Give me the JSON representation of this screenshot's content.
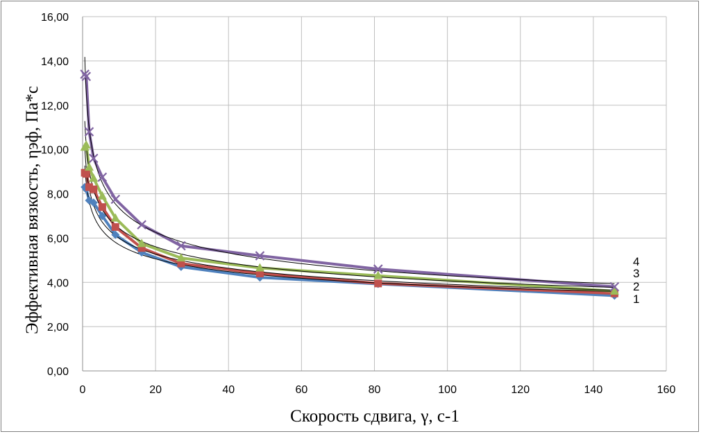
{
  "chart_data": {
    "type": "scatter",
    "title": "",
    "xlabel": "Скорость сдвига, γ, с-1",
    "ylabel": "Эффективная вязкость, ηэф, Па*с",
    "xlim": [
      0,
      160
    ],
    "ylim": [
      0,
      16
    ],
    "x_ticks": [
      "0",
      "20",
      "40",
      "60",
      "80",
      "100",
      "120",
      "140",
      "160"
    ],
    "y_ticks": [
      "0,00",
      "2,00",
      "4,00",
      "6,00",
      "8,00",
      "10,00",
      "12,00",
      "14,00",
      "16,00"
    ],
    "grid": true,
    "legend": "none",
    "curve_labels": [
      "1",
      "2",
      "3",
      "4"
    ],
    "series": [
      {
        "name": "1",
        "marker": "diamond",
        "color": "#4f81bd",
        "x": [
          0.6,
          1.0,
          1.8,
          3.0,
          5.4,
          9.0,
          16.2,
          27.0,
          48.6,
          81.0,
          145.8
        ],
        "y": [
          8.3,
          8.2,
          7.7,
          7.6,
          7.0,
          6.15,
          5.35,
          4.7,
          4.22,
          3.93,
          3.4
        ]
      },
      {
        "name": "2",
        "marker": "square",
        "color": "#c0504d",
        "x": [
          0.6,
          1.0,
          1.8,
          3.0,
          5.4,
          9.0,
          16.2,
          27.0,
          48.6,
          81.0,
          145.8
        ],
        "y": [
          8.95,
          8.9,
          8.3,
          8.2,
          7.4,
          6.5,
          5.55,
          4.85,
          4.4,
          3.95,
          3.5
        ]
      },
      {
        "name": "3",
        "marker": "triangle",
        "color": "#9bbb59",
        "x": [
          0.6,
          1.0,
          1.8,
          3.0,
          5.4,
          9.0,
          16.2,
          27.0,
          48.6,
          81.0,
          145.8
        ],
        "y": [
          10.1,
          10.2,
          9.2,
          8.7,
          7.9,
          6.9,
          5.75,
          5.1,
          4.65,
          4.3,
          3.6
        ]
      },
      {
        "name": "4",
        "marker": "x",
        "color": "#8064a2",
        "x": [
          0.6,
          1.0,
          1.8,
          3.0,
          5.4,
          9.0,
          16.2,
          27.0,
          48.6,
          81.0,
          145.8
        ],
        "y": [
          13.4,
          13.3,
          10.8,
          9.6,
          8.75,
          7.75,
          6.6,
          5.65,
          5.2,
          4.6,
          3.8
        ]
      }
    ],
    "trendlines": [
      {
        "series": "1",
        "type": "power",
        "color": "#000000"
      },
      {
        "series": "2",
        "type": "power",
        "color": "#000000"
      },
      {
        "series": "3",
        "type": "power",
        "color": "#000000"
      },
      {
        "series": "4",
        "type": "power",
        "color": "#000000"
      }
    ]
  }
}
